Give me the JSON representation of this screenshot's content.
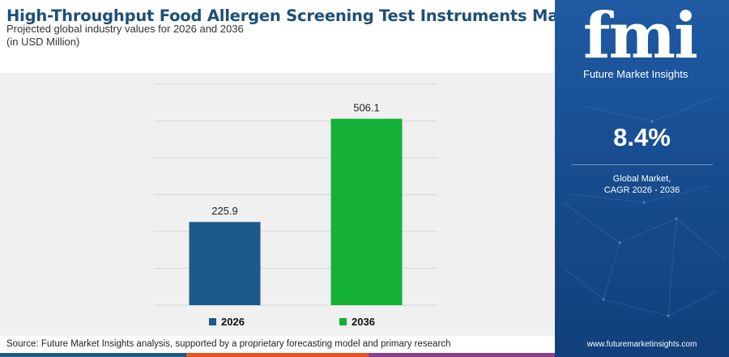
{
  "header": {
    "title": "High-Throughput Food Allergen Screening Test Instruments Market",
    "subtitle": "Projected global industry values for 2026 and 2036",
    "unit": "(in USD Million)"
  },
  "chart_data": {
    "type": "bar",
    "categories": [
      "2026",
      "2036"
    ],
    "values": [
      225.9,
      506.1
    ],
    "value_labels": [
      "225.9",
      "506.1"
    ],
    "colors": [
      "#1b5a8b",
      "#14b136"
    ],
    "ylim": [
      0,
      600
    ],
    "grid": true,
    "legend_position": "bottom"
  },
  "legend": {
    "items": [
      {
        "label": "2026",
        "color": "#1b5a8b"
      },
      {
        "label": "2036",
        "color": "#14b136"
      }
    ]
  },
  "source": "Source: Future Market Insights analysis, supported by a proprietary forecasting model and primary research",
  "sidebar": {
    "logo": "fmi",
    "logo_sub": "Future Market Insights",
    "cagr_value": "8.4%",
    "cagr_label_line1": "Global Market,",
    "cagr_label_line2": "CAGR 2026 - 2036",
    "website": "www.futuremarketinsights.com"
  },
  "colors": {
    "title": "#1d4f79",
    "sidebar_bg": "#1a54a0",
    "stripe": [
      "#1b5a8b",
      "#14b136",
      "#e8571f",
      "#8c3f90"
    ]
  }
}
